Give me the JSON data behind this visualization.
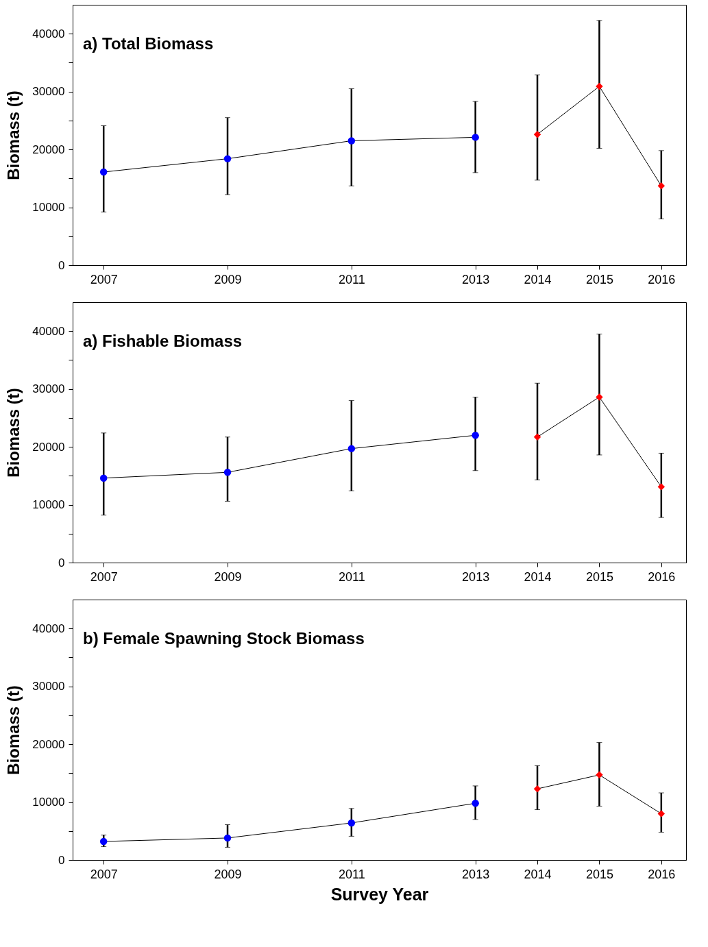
{
  "chart_data": [
    {
      "type": "line",
      "title": "a) Total Biomass",
      "ylabel": "Biomass (t)",
      "xlim": [
        2006.5,
        2016.4
      ],
      "xticks": [
        2007,
        2009,
        2011,
        2013,
        2014,
        2015,
        2016
      ],
      "ylim": [
        0,
        45000
      ],
      "yticks": [
        0,
        {
          "value": 5000,
          "label": null
        },
        10000,
        {
          "value": 15000,
          "label": null
        },
        20000,
        {
          "value": 25000,
          "label": null
        },
        30000,
        {
          "value": 35000,
          "label": null
        },
        40000
      ],
      "grid": false,
      "series": [
        {
          "color": "#0000ff",
          "marker": "circle",
          "x": [
            2007,
            2009,
            2011,
            2013
          ],
          "values": [
            16100,
            18400,
            21500,
            22100
          ],
          "errors": [
            [
              9200,
              24100
            ],
            [
              12200,
              25500
            ],
            [
              13700,
              30500
            ],
            [
              16000,
              28300
            ]
          ]
        },
        {
          "color": "#ff0000",
          "marker": "diamond",
          "x": [
            2014,
            2015,
            2016
          ],
          "values": [
            22600,
            30900,
            13700
          ],
          "errors": [
            [
              14700,
              32900
            ],
            [
              20200,
              42300
            ],
            [
              8000,
              19800
            ]
          ]
        }
      ]
    },
    {
      "type": "line",
      "title": "a) Fishable Biomass",
      "ylabel": "Biomass (t)",
      "xlim": [
        2006.5,
        2016.4
      ],
      "xticks": [
        2007,
        2009,
        2011,
        2013,
        2014,
        2015,
        2016
      ],
      "ylim": [
        0,
        45000
      ],
      "yticks": [
        0,
        {
          "value": 5000,
          "label": null
        },
        10000,
        {
          "value": 15000,
          "label": null
        },
        20000,
        {
          "value": 25000,
          "label": null
        },
        30000,
        {
          "value": 35000,
          "label": null
        },
        40000
      ],
      "grid": false,
      "series": [
        {
          "color": "#0000ff",
          "marker": "circle",
          "x": [
            2007,
            2009,
            2011,
            2013
          ],
          "values": [
            14600,
            15600,
            19700,
            22000
          ],
          "errors": [
            [
              8200,
              22400
            ],
            [
              10600,
              21700
            ],
            [
              12400,
              28000
            ],
            [
              15900,
              28600
            ]
          ]
        },
        {
          "color": "#ff0000",
          "marker": "diamond",
          "x": [
            2014,
            2015,
            2016
          ],
          "values": [
            21700,
            28600,
            13100
          ],
          "errors": [
            [
              14300,
              31000
            ],
            [
              18600,
              39500
            ],
            [
              7800,
              18900
            ]
          ]
        }
      ]
    },
    {
      "type": "line",
      "title": "b) Female Spawning Stock Biomass",
      "xlabel": "Survey Year",
      "ylabel": "Biomass (t)",
      "xlim": [
        2006.5,
        2016.4
      ],
      "xticks": [
        2007,
        2009,
        2011,
        2013,
        2014,
        2015,
        2016
      ],
      "ylim": [
        0,
        45000
      ],
      "yticks": [
        0,
        {
          "value": 5000,
          "label": null
        },
        10000,
        {
          "value": 15000,
          "label": null
        },
        20000,
        {
          "value": 25000,
          "label": null
        },
        30000,
        {
          "value": 35000,
          "label": null
        },
        40000
      ],
      "grid": false,
      "series": [
        {
          "color": "#0000ff",
          "marker": "circle",
          "x": [
            2007,
            2009,
            2011,
            2013
          ],
          "values": [
            3200,
            3800,
            6400,
            9800
          ],
          "errors": [
            [
              2300,
              4300
            ],
            [
              2200,
              6100
            ],
            [
              4100,
              8900
            ],
            [
              7000,
              12800
            ]
          ]
        },
        {
          "color": "#ff0000",
          "marker": "diamond",
          "x": [
            2014,
            2015,
            2016
          ],
          "values": [
            12300,
            14700,
            8000
          ],
          "errors": [
            [
              8700,
              16300
            ],
            [
              9300,
              20300
            ],
            [
              4800,
              11600
            ]
          ]
        }
      ]
    }
  ]
}
